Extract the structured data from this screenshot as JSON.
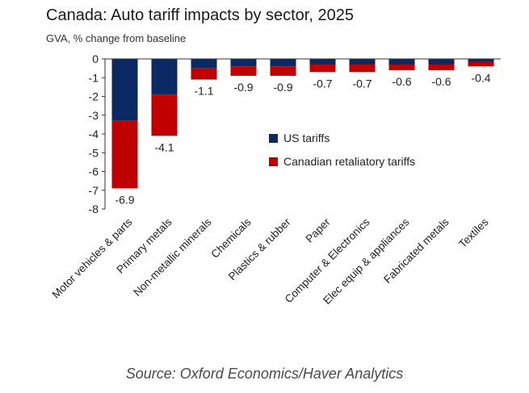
{
  "chart_data": {
    "type": "bar",
    "stacked": true,
    "title": "Canada: Auto tariff impacts by sector, 2025",
    "subtitle": "GVA, % change from baseline",
    "source": "Source: Oxford Economics/Haver Analytics",
    "categories": [
      "Motor vehicles & parts",
      "Primary metals",
      "Non-metallic minerals",
      "Chemicals",
      "Plastics & rubber",
      "Paper",
      "Computer & Electronics",
      "Elec equip & appliances",
      "Fabricated metals",
      "Textiles"
    ],
    "series": [
      {
        "name": "US tariffs",
        "color": "#0b2a63",
        "values": [
          -3.3,
          -1.9,
          -0.5,
          -0.4,
          -0.4,
          -0.3,
          -0.3,
          -0.3,
          -0.3,
          -0.15
        ]
      },
      {
        "name": "Canadian retaliatory tariffs",
        "color": "#c00000",
        "values": [
          -3.6,
          -2.2,
          -0.6,
          -0.5,
          -0.5,
          -0.4,
          -0.4,
          -0.3,
          -0.3,
          -0.25
        ]
      }
    ],
    "totals": [
      -6.9,
      -4.1,
      -1.1,
      -0.9,
      -0.9,
      -0.7,
      -0.7,
      -0.6,
      -0.6,
      -0.4
    ],
    "total_labels": [
      "-6.9",
      "-4.1",
      "-1.1",
      "-0.9",
      "-0.9",
      "-0.7",
      "-0.7",
      "-0.6",
      "-0.6",
      "-0.4"
    ],
    "ylim": [
      -8,
      0
    ],
    "yticks": [
      0,
      -1,
      -2,
      -3,
      -4,
      -5,
      -6,
      -7,
      -8
    ],
    "ytick_labels": [
      "0",
      "-1",
      "-2",
      "-3",
      "-4",
      "-5",
      "-6",
      "-7",
      "-8"
    ],
    "legend_position": "inside-center",
    "grid": false
  }
}
